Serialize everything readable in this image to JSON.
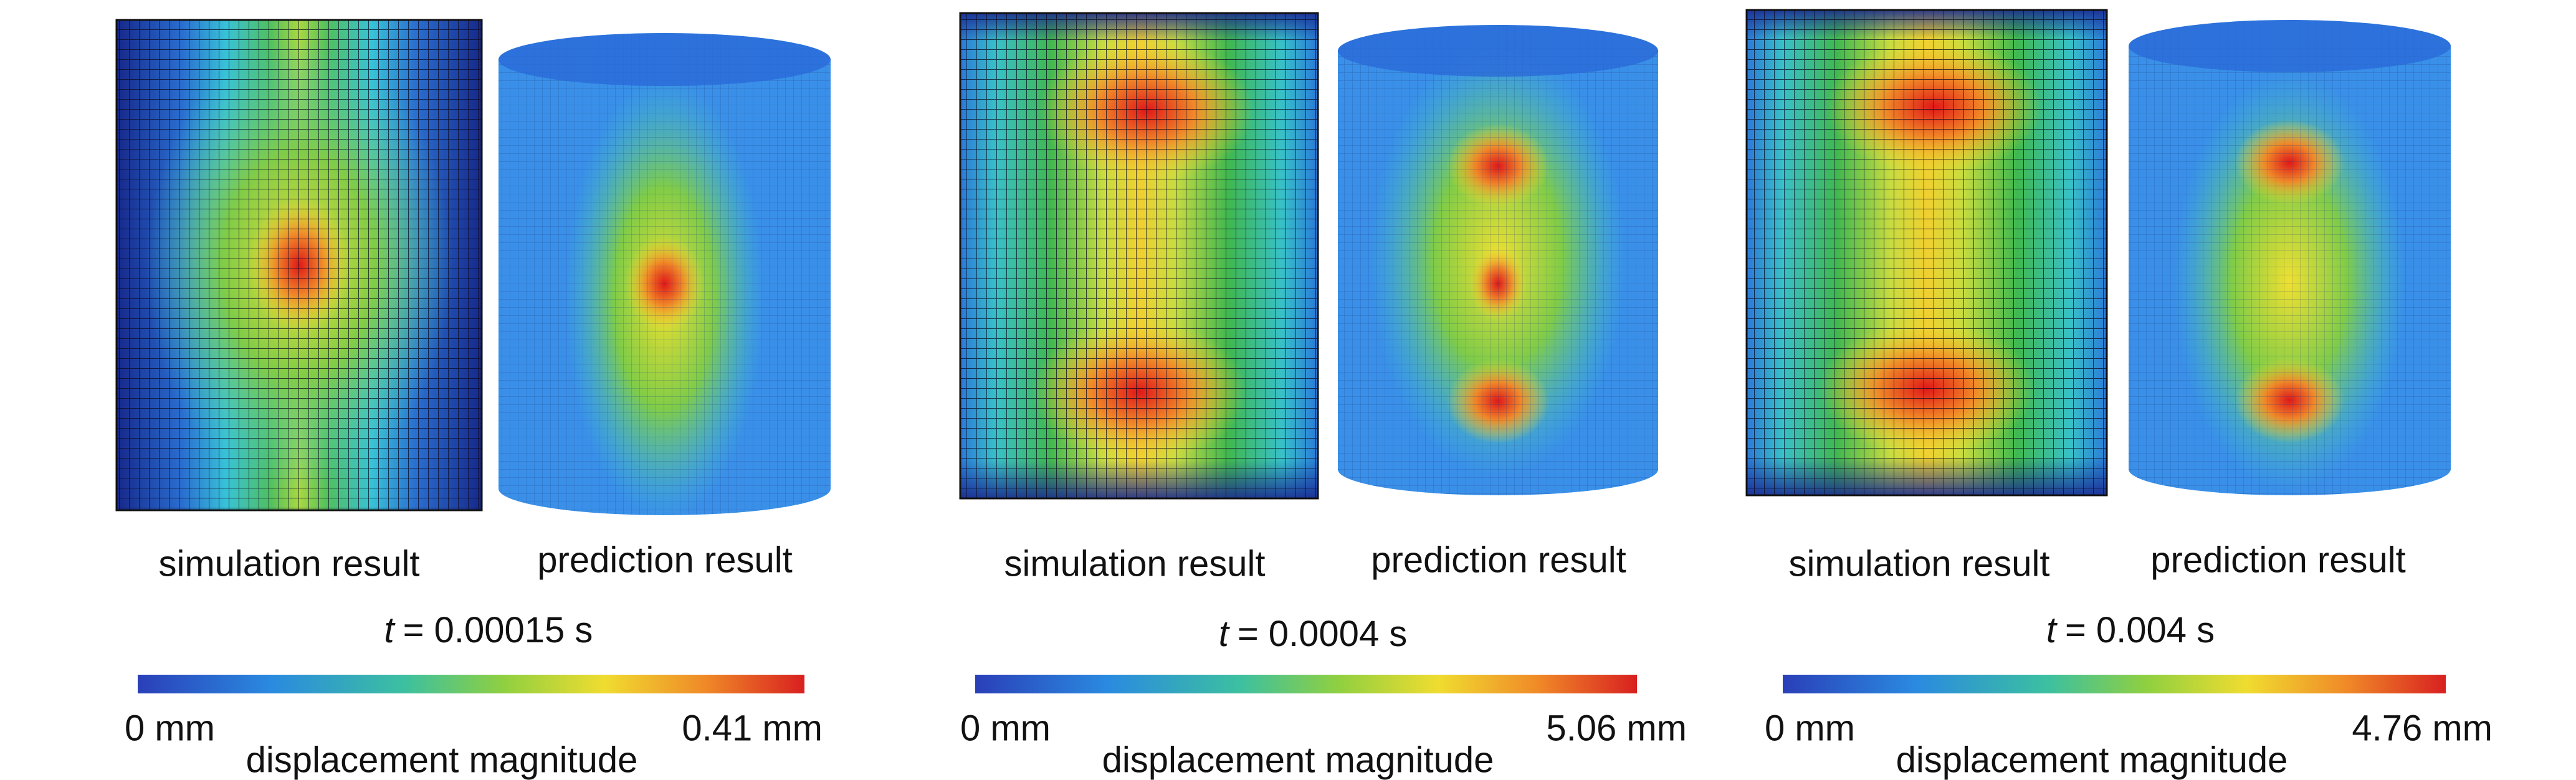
{
  "panels": [
    {
      "simulation_label": "simulation result",
      "prediction_label": "prediction result",
      "time_symbol": "t",
      "time_value": "= 0.00015 s",
      "colorbar": {
        "min_label": "0 mm",
        "max_label": "0.41 mm",
        "title": "displacement magnitude"
      }
    },
    {
      "simulation_label": "simulation result",
      "prediction_label": "prediction result",
      "time_symbol": "t",
      "time_value": "= 0.0004 s",
      "colorbar": {
        "min_label": "0 mm",
        "max_label": "5.06 mm",
        "title": "displacement magnitude"
      }
    },
    {
      "simulation_label": "simulation result",
      "prediction_label": "prediction result",
      "time_symbol": "t",
      "time_value": "= 0.004 s",
      "colorbar": {
        "min_label": "0 mm",
        "max_label": "4.76 mm",
        "title": "displacement magnitude"
      }
    }
  ]
}
